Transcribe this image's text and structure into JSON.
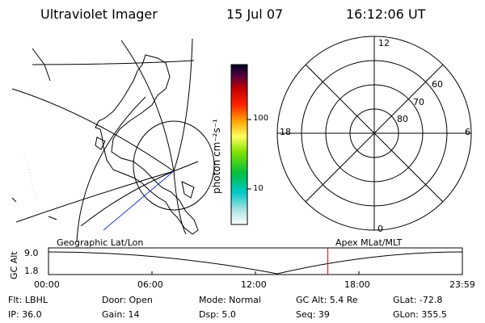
{
  "header": {
    "instrument": "Ultraviolet Imager",
    "date": "15 Jul 07",
    "time": "16:12:06 UT"
  },
  "colorbar": {
    "unit_label": "photon cm⁻²s⁻¹",
    "tick_100": "100",
    "tick_10": "10"
  },
  "polar": {
    "mlt_top": "12",
    "mlt_left": "18",
    "mlt_right": "6",
    "mlt_bottom": "0",
    "lat_60": "60",
    "lat_70": "70",
    "lat_80": "80"
  },
  "panels": {
    "left_caption": "Geographic Lat/Lon",
    "right_caption": "Apex MLat/MLT"
  },
  "altitude_plot": {
    "ylabel": "GC Alt",
    "ytick_top": "9.0",
    "ytick_bottom": "1.8",
    "xticks": [
      "00:00",
      "06:00",
      "12:00",
      "18:00",
      "23:59"
    ],
    "current_time_marker_hours": 16.2
  },
  "status": {
    "flt": "Flt: LBHL",
    "ip": "IP: 36.0",
    "door": "Door: Open",
    "gain": "Gain: 14",
    "mode": "Mode: Normal",
    "dsp": "Dsp:    5.0",
    "gcalt": "GC Alt: 5.4 Re",
    "seq": "Seq: 39",
    "glat": "GLat: -72.8",
    "glon": "GLon: 355.5"
  },
  "colors": {
    "marker": "#e00000",
    "orbit_segment": "#2040c0"
  }
}
